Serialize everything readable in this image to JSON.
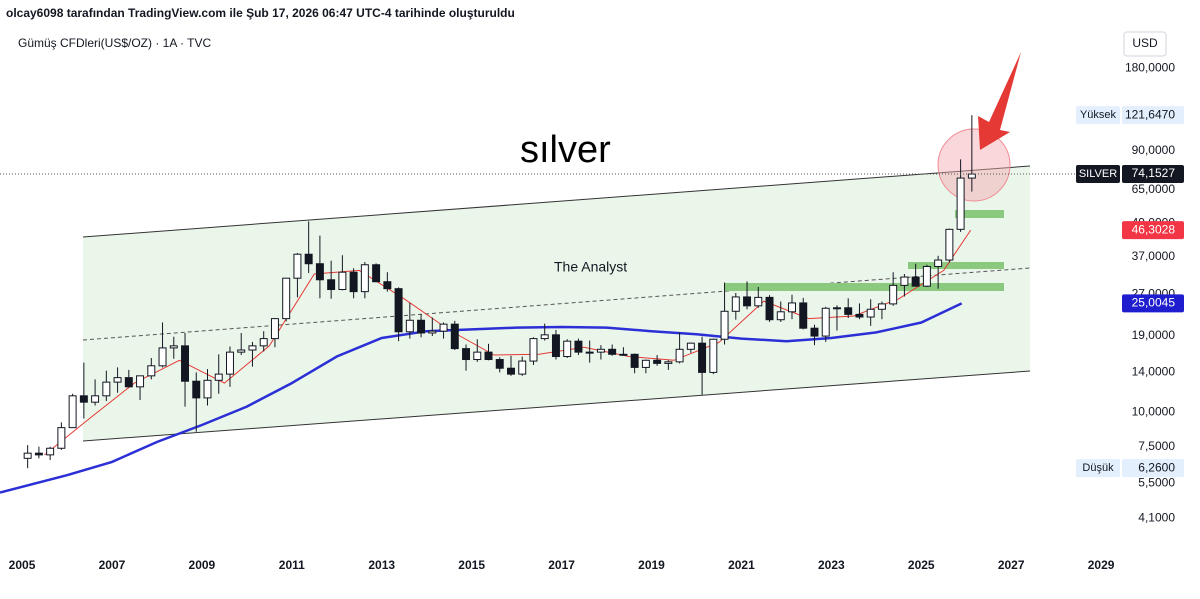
{
  "header": "olcay6098 tarafından TradingView.com ile Şub 17, 2026 06:47 UTC-4 tarihinde oluşturuldu",
  "chart_data": {
    "type": "candlestick",
    "title": "Gümüş CFDleri(US$/OZ) · 1A · TVC",
    "currency": "USD",
    "annotations": [
      "sılver",
      "The Analyst"
    ],
    "log_scale": true,
    "grid": false,
    "up_color": "#ffffff",
    "down_color": "#131722",
    "xlim": [
      2004.51,
      2029.42
    ],
    "xticks": [
      2005,
      2007,
      2009,
      2011,
      2013,
      2015,
      2017,
      2019,
      2021,
      2023,
      2025,
      2027,
      2029
    ],
    "ylim": [
      3.2,
      225
    ],
    "yticks": [
      {
        "value": 4.1,
        "label": "4,1000"
      },
      {
        "value": 5.5,
        "label": "5,5000"
      },
      {
        "value": 7.5,
        "label": "7,5000"
      },
      {
        "value": 10,
        "label": "10,0000"
      },
      {
        "value": 14,
        "label": "14,0000"
      },
      {
        "value": 19,
        "label": "19,0000"
      },
      {
        "value": 27,
        "label": "27,0000"
      },
      {
        "value": 37,
        "label": "37,0000"
      },
      {
        "value": 49,
        "label": "49,0000"
      },
      {
        "value": 65,
        "label": "65,0000"
      },
      {
        "value": 90,
        "label": "90,0000"
      },
      {
        "value": 180,
        "label": "180,0000"
      }
    ],
    "x": [
      2005,
      2005.25,
      2005.5,
      2005.75,
      2006,
      2006.25,
      2006.5,
      2006.75,
      2007,
      2007.25,
      2007.5,
      2007.75,
      2008,
      2008.25,
      2008.5,
      2008.75,
      2009,
      2009.25,
      2009.5,
      2009.75,
      2010,
      2010.25,
      2010.5,
      2010.75,
      2011,
      2011.25,
      2011.5,
      2011.75,
      2012,
      2012.25,
      2012.5,
      2012.75,
      2013,
      2013.25,
      2013.5,
      2013.75,
      2014,
      2014.25,
      2014.5,
      2014.75,
      2015,
      2015.25,
      2015.5,
      2015.75,
      2016,
      2016.25,
      2016.5,
      2016.75,
      2017,
      2017.25,
      2017.5,
      2017.75,
      2018,
      2018.25,
      2018.5,
      2018.75,
      2019,
      2019.25,
      2019.5,
      2019.75,
      2020,
      2020.25,
      2020.5,
      2020.75,
      2021,
      2021.25,
      2021.5,
      2021.75,
      2022,
      2022.25,
      2022.5,
      2022.75,
      2023,
      2023.25,
      2023.5,
      2023.75,
      2024,
      2024.25,
      2024.5,
      2024.75,
      2025,
      2025.25,
      2025.5,
      2025.75,
      2026
    ],
    "open": [
      6.8,
      7.1,
      7.0,
      7.4,
      8.8,
      11.5,
      10.9,
      11.5,
      12.9,
      13.4,
      12.4,
      13.6,
      14.8,
      17.2,
      17.5,
      13.0,
      11.3,
      13.1,
      13.8,
      16.6,
      16.9,
      17.5,
      18.6,
      22.0,
      30.9,
      37.8,
      34.9,
      30.5,
      28.1,
      32.5,
      27.6,
      34.6,
      30.0,
      28.3,
      19.7,
      21.7,
      19.5,
      19.8,
      21.0,
      17.1,
      15.6,
      16.6,
      15.6,
      14.5,
      13.8,
      15.4,
      18.6,
      19.2,
      16.0,
      18.2,
      16.6,
      16.6,
      17.0,
      16.3,
      16.3,
      14.6,
      15.5,
      15.1,
      15.3,
      17.0,
      17.9,
      14.0,
      18.5,
      23.4,
      26.4,
      24.5,
      26.3,
      21.8,
      23.3,
      25.1,
      20.3,
      19.0,
      24.0,
      24.1,
      22.8,
      22.3,
      23.8,
      24.9,
      29.1,
      31.2,
      28.9,
      34.1,
      36.0,
      46.6,
      71.7
    ],
    "high": [
      7.6,
      7.5,
      7.5,
      9.2,
      11.7,
      15.2,
      13.2,
      14.2,
      14.6,
      14.3,
      13.6,
      15.8,
      21.3,
      18.9,
      19.5,
      14.0,
      14.4,
      16.3,
      17.4,
      19.5,
      18.1,
      19.8,
      22.1,
      31.0,
      38.2,
      49.8,
      44.2,
      35.8,
      37.5,
      33.6,
      35.4,
      35.0,
      32.5,
      28.6,
      25.1,
      22.8,
      22.2,
      21.3,
      21.6,
      17.7,
      18.5,
      17.8,
      15.9,
      16.1,
      16.0,
      18.8,
      21.1,
      20.0,
      18.5,
      18.6,
      18.3,
      17.6,
      17.7,
      17.3,
      16.4,
      15.6,
      16.2,
      15.5,
      19.6,
      18.0,
      18.9,
      18.6,
      29.8,
      27.3,
      30.1,
      28.7,
      26.8,
      25.4,
      26.9,
      26.2,
      20.9,
      24.3,
      24.6,
      26.1,
      25.0,
      25.9,
      25.4,
      32.5,
      32.0,
      34.9,
      34.6,
      37.3,
      46.9,
      83.9,
      121.647
    ],
    "low": [
      6.26,
      6.8,
      6.7,
      7.3,
      8.8,
      9.5,
      10.6,
      11.0,
      11.8,
      12.4,
      11.1,
      13.2,
      14.6,
      15.7,
      10.5,
      8.5,
      10.6,
      11.7,
      12.4,
      16.2,
      14.7,
      16.7,
      17.3,
      21.5,
      26.3,
      32.3,
      26.1,
      26.0,
      27.9,
      26.1,
      26.1,
      29.9,
      27.6,
      18.2,
      18.6,
      18.8,
      19.0,
      18.6,
      16.9,
      14.2,
      15.3,
      15.5,
      14.0,
      13.6,
      13.6,
      14.9,
      18.3,
      15.6,
      15.8,
      16.2,
      15.2,
      15.6,
      16.1,
      16.1,
      13.9,
      13.9,
      14.8,
      14.3,
      15.1,
      16.5,
      11.6,
      13.8,
      17.7,
      21.8,
      23.8,
      24.1,
      21.4,
      21.4,
      21.9,
      20.1,
      17.6,
      18.1,
      19.9,
      22.1,
      21.9,
      20.7,
      21.9,
      24.5,
      26.5,
      28.8,
      28.7,
      28.3,
      35.3,
      45.6,
      64.0
    ],
    "close": [
      7.1,
      7.0,
      7.4,
      8.8,
      11.5,
      10.9,
      11.5,
      12.9,
      13.4,
      12.4,
      13.6,
      14.8,
      17.2,
      17.5,
      13.0,
      11.3,
      13.1,
      13.8,
      16.6,
      16.9,
      17.5,
      18.6,
      22.0,
      30.9,
      37.8,
      34.9,
      30.5,
      28.1,
      32.5,
      27.6,
      34.6,
      30.0,
      28.3,
      19.7,
      21.7,
      19.5,
      19.8,
      21.0,
      17.1,
      15.6,
      16.6,
      15.6,
      14.5,
      13.8,
      15.4,
      18.6,
      19.2,
      16.0,
      18.2,
      16.6,
      16.6,
      17.0,
      16.3,
      16.3,
      14.6,
      15.5,
      15.1,
      15.3,
      17.0,
      17.9,
      14.0,
      18.5,
      23.4,
      26.4,
      24.5,
      26.3,
      21.8,
      23.3,
      25.1,
      20.3,
      19.0,
      24.0,
      24.1,
      22.8,
      22.3,
      23.8,
      24.9,
      29.1,
      31.2,
      28.9,
      34.1,
      36.0,
      46.6,
      71.7,
      74.1527
    ],
    "moving_averages": [
      {
        "color": "#e53935",
        "x": [
          2005.5,
          2006.5,
          2007.5,
          2008.5,
          2009.5,
          2010.5,
          2011.5,
          2012.5,
          2013.5,
          2014.5,
          2015.5,
          2016.5,
          2017.5,
          2018.5,
          2019.5,
          2020.5,
          2021.5,
          2022.5,
          2023.5,
          2024.5,
          2025.5,
          2026.1
        ],
        "values": [
          7.0,
          9.5,
          12.8,
          15.5,
          12.8,
          17.5,
          32,
          33,
          26,
          20,
          16.2,
          16.3,
          17.3,
          16,
          15.5,
          18,
          25.5,
          22,
          22.5,
          26,
          33,
          46.3028
        ]
      },
      {
        "color": "#2b2fd6",
        "x": [
          2004.51,
          2006,
          2007,
          2008,
          2009,
          2010,
          2011,
          2012,
          2013,
          2014,
          2015,
          2016,
          2017,
          2018,
          2019,
          2020,
          2021,
          2022,
          2023,
          2024,
          2025,
          2025.9
        ],
        "values": [
          5.1,
          5.9,
          6.6,
          7.8,
          9.0,
          10.5,
          12.8,
          16.0,
          18.7,
          19.8,
          20.1,
          20.4,
          20.5,
          20.4,
          19.8,
          19.3,
          18.6,
          18.2,
          18.7,
          19.6,
          21.3,
          25.0045
        ]
      }
    ],
    "price_labels": [
      {
        "label": "Yüksek",
        "value": 121.647,
        "value_label": "121,6470",
        "color": "#e3effd"
      },
      {
        "label": "SILVER",
        "value": 74.1527,
        "value_label": "74,1527",
        "color": "#131722"
      },
      {
        "value": 46.3028,
        "value_label": "46,3028",
        "color": "#f23645"
      },
      {
        "value": 25.0045,
        "value_label": "25,0045",
        "color": "#1e1ecf"
      },
      {
        "label": "Düşük",
        "value": 6.26,
        "value_label": "6,2600",
        "color": "#e3effd"
      }
    ]
  }
}
